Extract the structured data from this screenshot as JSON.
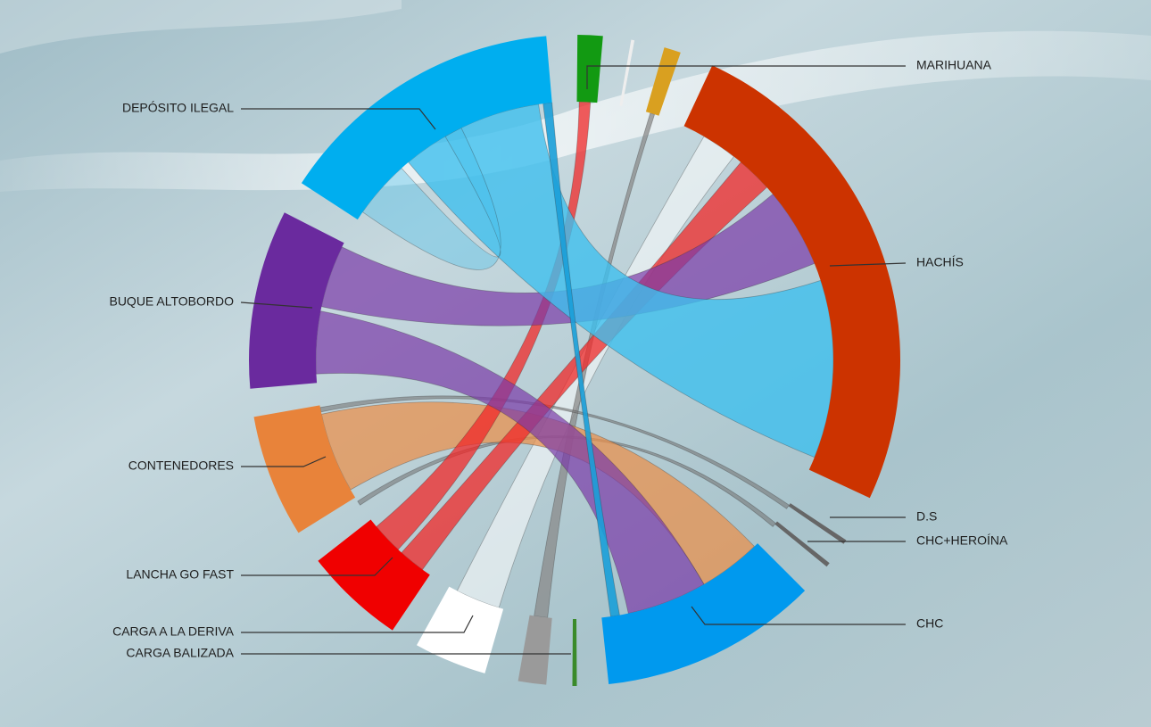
{
  "nodes": [
    {
      "label": "MARIHUANA"
    },
    {
      "label": "HACHÍS"
    },
    {
      "label": "D.S"
    },
    {
      "label": "CHC+HEROÍNA"
    },
    {
      "label": "CHC"
    },
    {
      "label": "CARGA BALIZADA"
    },
    {
      "label": "CARGA A LA DERIVA"
    },
    {
      "label": "LANCHA GO FAST"
    },
    {
      "label": "CONTENEDORES"
    },
    {
      "label": "BUQUE ALTOBORDO"
    },
    {
      "label": "DEPÓSITO ILEGAL"
    }
  ]
}
